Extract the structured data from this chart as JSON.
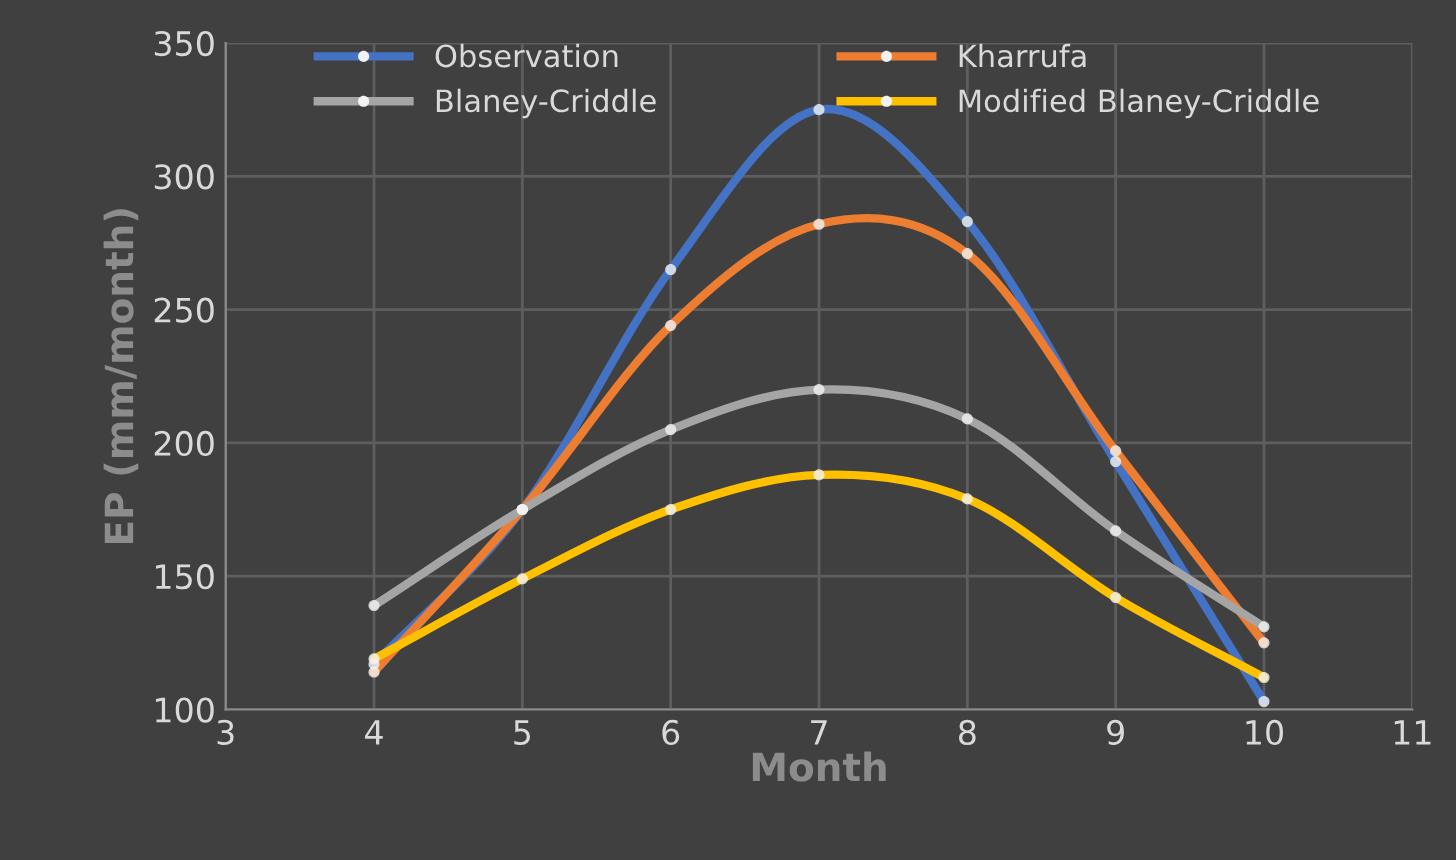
{
  "chart_data": {
    "type": "line",
    "xlabel": "Month",
    "ylabel": "EP (mm/month)",
    "x": [
      4,
      5,
      6,
      7,
      8,
      9,
      10
    ],
    "series": [
      {
        "name": "Observation",
        "color": "#4472c4",
        "values": [
          117,
          175,
          265,
          325,
          283,
          193,
          103
        ]
      },
      {
        "name": "Kharrufa",
        "color": "#ed7d31",
        "values": [
          114,
          175,
          244,
          282,
          271,
          197,
          125
        ]
      },
      {
        "name": "Blaney-Criddle",
        "color": "#a5a5a5",
        "values": [
          139,
          175,
          205,
          220,
          209,
          167,
          131
        ]
      },
      {
        "name": "Modified Blaney-Criddle",
        "color": "#ffc000",
        "values": [
          119,
          149,
          175,
          188,
          179,
          142,
          112
        ]
      }
    ],
    "xlim": [
      3,
      11
    ],
    "xticks": [
      3,
      4,
      5,
      6,
      7,
      8,
      9,
      10,
      11
    ],
    "ylim": [
      100,
      350
    ],
    "yticks": [
      100,
      150,
      200,
      250,
      300,
      350
    ],
    "grid": true,
    "legend": "top",
    "marker": "circle",
    "line_style": "solid"
  }
}
